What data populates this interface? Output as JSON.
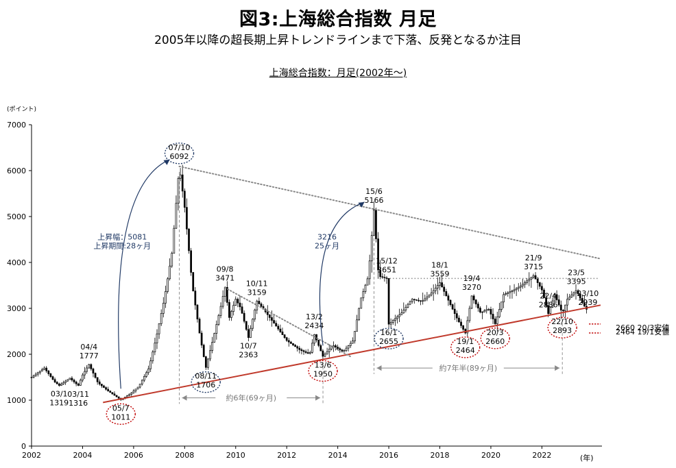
{
  "figure": {
    "title": "図3:上海総合指数 月足",
    "subtitle": "2005年以降の超長期上昇トレンドラインまで下落、反発となるか注目"
  },
  "chart_data": {
    "type": "candlestick",
    "title": "上海総合指数：月足(2002年～)",
    "ylabel": "(ポイント)",
    "xlabel": "(年)",
    "xlim": [
      2002.0,
      2024.3
    ],
    "ylim": [
      0,
      7000
    ],
    "x_ticks": [
      "2002",
      "2004",
      "2006",
      "2008",
      "2010",
      "2012",
      "2014",
      "2016",
      "2018",
      "2020",
      "2022"
    ],
    "y_ticks": [
      "0",
      "1000",
      "2000",
      "3000",
      "4000",
      "5000",
      "6000",
      "7000"
    ],
    "x_tick_values": [
      2002,
      2004,
      2006,
      2008,
      2010,
      2012,
      2014,
      2016,
      2018,
      2020,
      2022
    ],
    "y_tick_values": [
      0,
      1000,
      2000,
      3000,
      4000,
      5000,
      6000,
      7000
    ],
    "grid": false,
    "series_close": [
      [
        2002.0,
        1500
      ],
      [
        2002.5,
        1700
      ],
      [
        2002.9,
        1400
      ],
      [
        2003.08,
        1319
      ],
      [
        2003.5,
        1480
      ],
      [
        2003.83,
        1316
      ],
      [
        2004.0,
        1550
      ],
      [
        2004.25,
        1777
      ],
      [
        2004.6,
        1380
      ],
      [
        2005.0,
        1200
      ],
      [
        2005.5,
        1011
      ],
      [
        2005.9,
        1150
      ],
      [
        2006.2,
        1300
      ],
      [
        2006.6,
        1700
      ],
      [
        2006.9,
        2400
      ],
      [
        2007.2,
        3200
      ],
      [
        2007.5,
        4200
      ],
      [
        2007.79,
        6092
      ],
      [
        2008.0,
        5200
      ],
      [
        2008.3,
        3500
      ],
      [
        2008.6,
        2400
      ],
      [
        2008.83,
        1706
      ],
      [
        2009.1,
        2300
      ],
      [
        2009.4,
        3000
      ],
      [
        2009.58,
        3471
      ],
      [
        2009.75,
        2800
      ],
      [
        2010.0,
        3200
      ],
      [
        2010.2,
        3000
      ],
      [
        2010.5,
        2363
      ],
      [
        2010.83,
        3159
      ],
      [
        2011.2,
        2900
      ],
      [
        2011.6,
        2600
      ],
      [
        2012.0,
        2300
      ],
      [
        2012.5,
        2100
      ],
      [
        2012.9,
        2000
      ],
      [
        2013.08,
        2434
      ],
      [
        2013.42,
        1950
      ],
      [
        2013.8,
        2200
      ],
      [
        2014.2,
        2050
      ],
      [
        2014.6,
        2300
      ],
      [
        2014.9,
        3200
      ],
      [
        2015.2,
        3700
      ],
      [
        2015.42,
        5166
      ],
      [
        2015.6,
        3700
      ],
      [
        2015.92,
        3651
      ],
      [
        2016.0,
        2655
      ],
      [
        2016.5,
        2900
      ],
      [
        2016.9,
        3200
      ],
      [
        2017.3,
        3150
      ],
      [
        2017.7,
        3350
      ],
      [
        2018.0,
        3559
      ],
      [
        2018.4,
        3100
      ],
      [
        2018.7,
        2750
      ],
      [
        2019.0,
        2464
      ],
      [
        2019.25,
        3270
      ],
      [
        2019.6,
        2900
      ],
      [
        2019.9,
        3000
      ],
      [
        2020.17,
        2660
      ],
      [
        2020.5,
        3300
      ],
      [
        2020.9,
        3400
      ],
      [
        2021.2,
        3500
      ],
      [
        2021.67,
        3715
      ],
      [
        2022.0,
        3400
      ],
      [
        2022.25,
        2886
      ],
      [
        2022.5,
        3300
      ],
      [
        2022.8,
        2893
      ],
      [
        2023.0,
        3200
      ],
      [
        2023.35,
        3395
      ],
      [
        2023.6,
        3100
      ],
      [
        2023.8,
        2939
      ]
    ],
    "trendlines": [
      {
        "kind": "support",
        "from": [
          2004.8,
          950
        ],
        "to": [
          2024.3,
          3070
        ]
      },
      {
        "kind": "resistance",
        "from": [
          2007.79,
          6092
        ],
        "to": [
          2024.3,
          4080
        ]
      },
      {
        "kind": "resistance",
        "from": [
          2009.58,
          3450
        ],
        "to": [
          2014.5,
          1950
        ]
      }
    ],
    "horizontal_lines": [
      {
        "y": 3651,
        "from": 2015.92,
        "to": 2024.2,
        "style": "dotted-gray"
      },
      {
        "y": 2660,
        "from": 2023.85,
        "to": 2024.3,
        "style": "dotted-red",
        "label": "2660 20/3安値"
      },
      {
        "y": 2464,
        "from": 2023.85,
        "to": 2024.3,
        "style": "dotted-red",
        "label": "2464 19/1安値"
      }
    ],
    "annotations": [
      {
        "x": 2003.08,
        "y": 1319,
        "text": "03/1\n1319",
        "circled": false
      },
      {
        "x": 2003.83,
        "y": 1316,
        "text": "03/11\n1316",
        "circled": false
      },
      {
        "x": 2004.25,
        "y": 1777,
        "text": "04/4\n1777",
        "circled": false
      },
      {
        "x": 2005.5,
        "y": 1011,
        "text": "05/7\n1011",
        "circled": true,
        "color": "#c00000"
      },
      {
        "x": 2007.79,
        "y": 6092,
        "text": "07/10\n6092",
        "circled": true,
        "color": "#1f3864"
      },
      {
        "x": 2008.83,
        "y": 1706,
        "text": "08/11\n1706",
        "circled": true,
        "color": "#1f3864"
      },
      {
        "x": 2009.58,
        "y": 3471,
        "text": "09/8\n3471",
        "circled": false
      },
      {
        "x": 2010.5,
        "y": 2363,
        "text": "10/7\n2363",
        "circled": false
      },
      {
        "x": 2010.83,
        "y": 3159,
        "text": "10/11\n3159",
        "circled": false
      },
      {
        "x": 2013.08,
        "y": 2434,
        "text": "13/2\n2434",
        "circled": false
      },
      {
        "x": 2013.42,
        "y": 1950,
        "text": "13/6\n1950",
        "circled": true,
        "color": "#c00000"
      },
      {
        "x": 2015.42,
        "y": 5166,
        "text": "15/6\n5166",
        "circled": false
      },
      {
        "x": 2015.92,
        "y": 3651,
        "text": "15/12\n3651",
        "circled": false
      },
      {
        "x": 2016.0,
        "y": 2655,
        "text": "16/1\n2655",
        "circled": true,
        "color": "#1f3864"
      },
      {
        "x": 2018.0,
        "y": 3559,
        "text": "18/1\n3559",
        "circled": false
      },
      {
        "x": 2019.0,
        "y": 2464,
        "text": "19/1\n2464",
        "circled": true,
        "color": "#c00000"
      },
      {
        "x": 2019.25,
        "y": 3270,
        "text": "19/4\n3270",
        "circled": false
      },
      {
        "x": 2020.17,
        "y": 2660,
        "text": "20/3\n2660",
        "circled": true,
        "color": "#c00000"
      },
      {
        "x": 2021.67,
        "y": 3715,
        "text": "21/9\n3715",
        "circled": false
      },
      {
        "x": 2022.25,
        "y": 2886,
        "text": "22/4\n2886",
        "circled": false
      },
      {
        "x": 2022.8,
        "y": 2893,
        "text": "22/10\n2893",
        "circled": true,
        "color": "#c00000"
      },
      {
        "x": 2023.35,
        "y": 3395,
        "text": "23/5\n3395",
        "circled": false
      },
      {
        "x": 2023.8,
        "y": 2939,
        "text": "23/10\n2939",
        "circled": false
      }
    ],
    "arrow_notes": [
      {
        "text": "上昇幅：5081\n上昇期間:28ヶ月",
        "from": [
          2005.5,
          1011
        ],
        "to": [
          2007.79,
          6092
        ]
      },
      {
        "text": "3216\n25ヶ月",
        "from": [
          2013.42,
          1950
        ],
        "to": [
          2015.42,
          5166
        ]
      }
    ],
    "span_notes": [
      {
        "text": "約6年(69ヶ月)",
        "from": 2007.79,
        "to": 2013.42,
        "y": 1050
      },
      {
        "text": "約7年半(89ヶ月)",
        "from": 2015.42,
        "to": 2022.8,
        "y": 1700
      }
    ]
  }
}
